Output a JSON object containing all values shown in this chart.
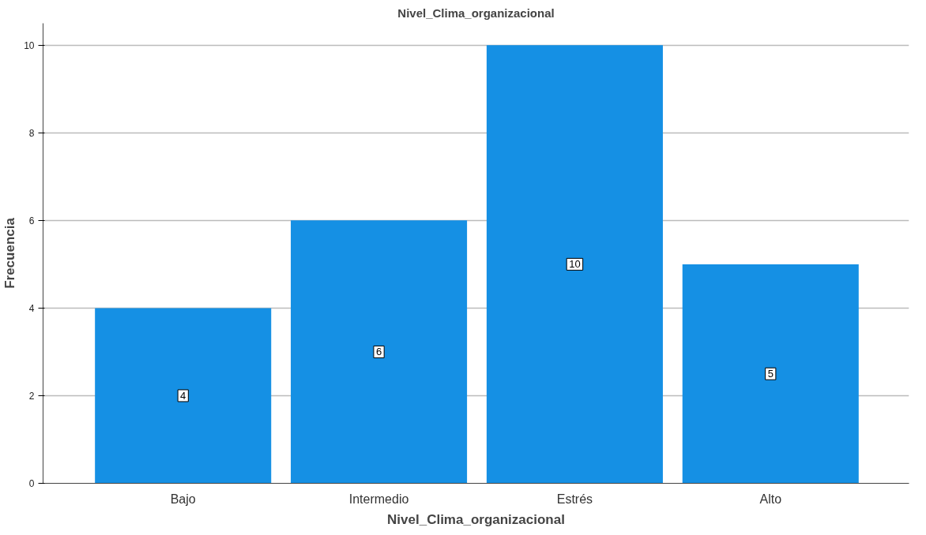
{
  "chart_data": {
    "type": "bar",
    "title": "Nivel_Clima_organizacional",
    "xlabel": "Nivel_Clima_organizacional",
    "ylabel": "Frecuencia",
    "categories": [
      "Bajo",
      "Intermedio",
      "Estrés",
      "Alto"
    ],
    "values": [
      4,
      6,
      10,
      5
    ],
    "color": "#1590e4",
    "ylim": [
      0,
      10.5
    ],
    "yticks": [
      0,
      2,
      4,
      6,
      8,
      10
    ],
    "grid": "y",
    "data_labels": true
  }
}
